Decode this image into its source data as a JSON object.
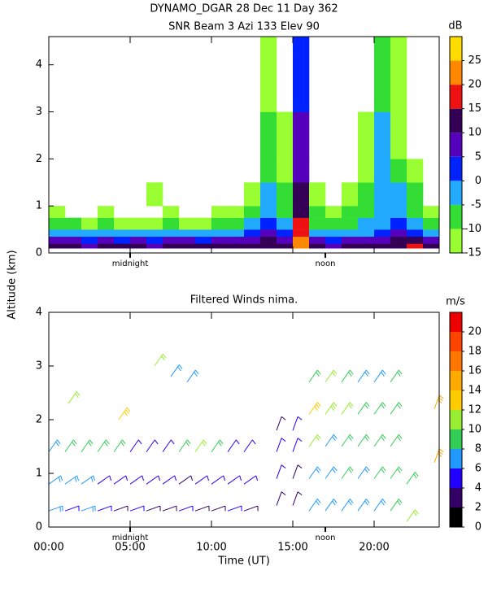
{
  "chart_data": [
    {
      "type": "heatmap",
      "title": "DYNAMO_DGAR  28 Dec 11 Day 362",
      "subtitle": "SNR Beam 3 Azi 133 Elev 90",
      "ylabel": "Altitude (km)",
      "xlim": [
        0,
        24
      ],
      "ylim": [
        0,
        4.6
      ],
      "xticks": [
        0,
        5,
        10,
        15,
        20
      ],
      "yticks": [
        0,
        1,
        2,
        3,
        4
      ],
      "x_edges": [
        0,
        1,
        2,
        3,
        4,
        5,
        6,
        7,
        8,
        9,
        10,
        11,
        12,
        13,
        14,
        15,
        16,
        17,
        18,
        19,
        20,
        21,
        22,
        23,
        24
      ],
      "y_edges": [
        0.1,
        0.2,
        0.35,
        0.5,
        0.75,
        1.0,
        1.5,
        2.0,
        3.0,
        4.6
      ],
      "z": [
        [
          10,
          10,
          8,
          12,
          10,
          10,
          8,
          10,
          10,
          10,
          10,
          10,
          12,
          12,
          10,
          22,
          10,
          8,
          10,
          10,
          12,
          14,
          18,
          10
        ],
        [
          5,
          5,
          3,
          5,
          4,
          5,
          3,
          5,
          5,
          4,
          5,
          5,
          8,
          10,
          8,
          20,
          5,
          3,
          5,
          6,
          8,
          10,
          12,
          5
        ],
        [
          -3,
          -3,
          -5,
          -2,
          -4,
          -3,
          -5,
          -3,
          -3,
          -4,
          -3,
          -3,
          2,
          5,
          2,
          18,
          -2,
          -4,
          -3,
          -2,
          2,
          5,
          2,
          -3
        ],
        [
          -10,
          -10,
          -12,
          -10,
          -12,
          -12,
          -12,
          -10,
          -12,
          -12,
          -10,
          -10,
          -5,
          0,
          -5,
          15,
          -8,
          -10,
          -8,
          -5,
          -3,
          0,
          -5,
          -10
        ],
        [
          -13,
          null,
          null,
          -14,
          null,
          null,
          null,
          -13,
          null,
          null,
          -13,
          -12,
          -8,
          -3,
          -8,
          12,
          -10,
          -12,
          -10,
          -8,
          -5,
          -3,
          -8,
          -13
        ],
        [
          null,
          null,
          null,
          null,
          null,
          null,
          -14,
          null,
          null,
          null,
          null,
          null,
          -12,
          -5,
          -10,
          10,
          -12,
          null,
          -12,
          -10,
          -5,
          -5,
          -10,
          null
        ],
        [
          null,
          null,
          null,
          null,
          null,
          null,
          null,
          null,
          null,
          null,
          null,
          null,
          null,
          -8,
          -12,
          8,
          null,
          null,
          null,
          -12,
          -5,
          -10,
          -12,
          null
        ],
        [
          null,
          null,
          null,
          null,
          null,
          null,
          null,
          null,
          null,
          null,
          null,
          null,
          null,
          -10,
          -13,
          5,
          null,
          null,
          null,
          -13,
          -5,
          -12,
          null,
          null
        ],
        [
          null,
          null,
          null,
          null,
          null,
          null,
          null,
          null,
          null,
          null,
          null,
          null,
          null,
          -12,
          null,
          3,
          null,
          null,
          null,
          null,
          -8,
          -14,
          null,
          null
        ]
      ],
      "colorbar": {
        "label": "dB",
        "levels": [
          -15,
          -10,
          -5,
          0,
          5,
          10,
          15,
          20,
          25,
          30
        ],
        "colors": [
          "#99ff33",
          "#33dd33",
          "#22aaff",
          "#0022ff",
          "#5500bb",
          "#330055",
          "#ee1111",
          "#ff8800",
          "#ffdd00"
        ],
        "ticks": [
          -15,
          -10,
          -5,
          0,
          5,
          10,
          15,
          20,
          25
        ]
      },
      "annotations": [
        {
          "text": "midnight",
          "x": 5
        },
        {
          "text": "noon",
          "x": 17
        }
      ]
    },
    {
      "type": "barbs",
      "title": "Filtered Winds nima.",
      "xlabel": "Time (UT)",
      "xlim": [
        0,
        24
      ],
      "ylim": [
        0,
        4
      ],
      "xticks": [
        {
          "value": 0,
          "label": "00:00"
        },
        {
          "value": 5,
          "label": "05:00"
        },
        {
          "value": 10,
          "label": "10:00"
        },
        {
          "value": 15,
          "label": "15:00"
        },
        {
          "value": 20,
          "label": "20:00"
        }
      ],
      "yticks": [
        0,
        1,
        2,
        3,
        4
      ],
      "colorbar": {
        "label": "m/s",
        "levels": [
          0,
          2,
          4,
          6,
          8,
          10,
          12,
          14,
          16,
          18,
          20,
          22
        ],
        "colors": [
          "#000000",
          "#330066",
          "#2200ff",
          "#2299ff",
          "#33cc55",
          "#99ee33",
          "#ffcc00",
          "#ffaa00",
          "#ff7700",
          "#ff4400",
          "#ee0000"
        ],
        "ticks": [
          0,
          2,
          4,
          6,
          8,
          10,
          12,
          14,
          16,
          18,
          20
        ]
      },
      "annotations": [
        {
          "text": "midnight",
          "x": 5
        },
        {
          "text": "noon",
          "x": 17
        }
      ],
      "barbs": [
        {
          "x": 0,
          "y": 0.3,
          "speed": 6,
          "direction": 70
        },
        {
          "x": 1,
          "y": 0.3,
          "speed": 5,
          "direction": 70
        },
        {
          "x": 2,
          "y": 0.3,
          "speed": 6,
          "direction": 70
        },
        {
          "x": 3,
          "y": 0.3,
          "speed": 4,
          "direction": 70
        },
        {
          "x": 4,
          "y": 0.3,
          "speed": 3,
          "direction": 70
        },
        {
          "x": 5,
          "y": 0.3,
          "speed": 4,
          "direction": 70
        },
        {
          "x": 6,
          "y": 0.3,
          "speed": 3,
          "direction": 70
        },
        {
          "x": 7,
          "y": 0.3,
          "speed": 3,
          "direction": 70
        },
        {
          "x": 8,
          "y": 0.3,
          "speed": 4,
          "direction": 70
        },
        {
          "x": 9,
          "y": 0.3,
          "speed": 3,
          "direction": 70
        },
        {
          "x": 10,
          "y": 0.3,
          "speed": 3,
          "direction": 70
        },
        {
          "x": 11,
          "y": 0.3,
          "speed": 4,
          "direction": 70
        },
        {
          "x": 12,
          "y": 0.3,
          "speed": 3,
          "direction": 70
        },
        {
          "x": 0,
          "y": 0.8,
          "speed": 7,
          "direction": 55
        },
        {
          "x": 1,
          "y": 0.8,
          "speed": 6,
          "direction": 55
        },
        {
          "x": 2,
          "y": 0.8,
          "speed": 6,
          "direction": 55
        },
        {
          "x": 3,
          "y": 0.8,
          "speed": 5,
          "direction": 55
        },
        {
          "x": 4,
          "y": 0.8,
          "speed": 4,
          "direction": 55
        },
        {
          "x": 5,
          "y": 0.8,
          "speed": 4,
          "direction": 55
        },
        {
          "x": 6,
          "y": 0.8,
          "speed": 5,
          "direction": 55
        },
        {
          "x": 7,
          "y": 0.8,
          "speed": 4,
          "direction": 55
        },
        {
          "x": 8,
          "y": 0.8,
          "speed": 3,
          "direction": 55
        },
        {
          "x": 9,
          "y": 0.8,
          "speed": 4,
          "direction": 55
        },
        {
          "x": 10,
          "y": 0.8,
          "speed": 5,
          "direction": 55
        },
        {
          "x": 11,
          "y": 0.8,
          "speed": 4,
          "direction": 55
        },
        {
          "x": 12,
          "y": 0.8,
          "speed": 4,
          "direction": 55
        },
        {
          "x": 0,
          "y": 1.4,
          "speed": 7,
          "direction": 35
        },
        {
          "x": 1,
          "y": 1.4,
          "speed": 8,
          "direction": 35
        },
        {
          "x": 2,
          "y": 1.4,
          "speed": 9,
          "direction": 35
        },
        {
          "x": 3,
          "y": 1.4,
          "speed": 9,
          "direction": 35
        },
        {
          "x": 4,
          "y": 1.4,
          "speed": 9,
          "direction": 35
        },
        {
          "x": 5,
          "y": 1.4,
          "speed": 5,
          "direction": 35
        },
        {
          "x": 6,
          "y": 1.4,
          "speed": 4,
          "direction": 35
        },
        {
          "x": 7,
          "y": 1.4,
          "speed": 5,
          "direction": 35
        },
        {
          "x": 8,
          "y": 1.4,
          "speed": 9,
          "direction": 35
        },
        {
          "x": 9,
          "y": 1.4,
          "speed": 10,
          "direction": 35
        },
        {
          "x": 10,
          "y": 1.4,
          "speed": 9,
          "direction": 35
        },
        {
          "x": 11,
          "y": 1.4,
          "speed": 5,
          "direction": 35
        },
        {
          "x": 12,
          "y": 1.4,
          "speed": 5,
          "direction": 35
        },
        {
          "x": 14,
          "y": 0.4,
          "speed": 3,
          "direction": 20
        },
        {
          "x": 14,
          "y": 0.9,
          "speed": 4,
          "direction": 20
        },
        {
          "x": 14,
          "y": 1.4,
          "speed": 4,
          "direction": 20
        },
        {
          "x": 14,
          "y": 1.8,
          "speed": 3,
          "direction": 20
        },
        {
          "x": 15,
          "y": 0.4,
          "speed": 3,
          "direction": 20
        },
        {
          "x": 15,
          "y": 0.9,
          "speed": 3,
          "direction": 20
        },
        {
          "x": 15,
          "y": 1.4,
          "speed": 4,
          "direction": 20
        },
        {
          "x": 15,
          "y": 1.8,
          "speed": 5,
          "direction": 20
        },
        {
          "x": 16,
          "y": 0.3,
          "speed": 7,
          "direction": 35
        },
        {
          "x": 16,
          "y": 0.9,
          "speed": 6,
          "direction": 35
        },
        {
          "x": 16,
          "y": 1.5,
          "speed": 10,
          "direction": 35
        },
        {
          "x": 16,
          "y": 2.1,
          "speed": 13,
          "direction": 35
        },
        {
          "x": 16,
          "y": 2.7,
          "speed": 9,
          "direction": 35
        },
        {
          "x": 17,
          "y": 0.3,
          "speed": 6,
          "direction": 35
        },
        {
          "x": 17,
          "y": 0.9,
          "speed": 7,
          "direction": 35
        },
        {
          "x": 17,
          "y": 1.5,
          "speed": 7,
          "direction": 35
        },
        {
          "x": 17,
          "y": 2.1,
          "speed": 11,
          "direction": 35
        },
        {
          "x": 17,
          "y": 2.7,
          "speed": 10,
          "direction": 35
        },
        {
          "x": 18,
          "y": 0.3,
          "speed": 7,
          "direction": 35
        },
        {
          "x": 18,
          "y": 0.9,
          "speed": 8,
          "direction": 35
        },
        {
          "x": 18,
          "y": 1.5,
          "speed": 9,
          "direction": 35
        },
        {
          "x": 18,
          "y": 2.1,
          "speed": 10,
          "direction": 35
        },
        {
          "x": 18,
          "y": 2.7,
          "speed": 9,
          "direction": 35
        },
        {
          "x": 19,
          "y": 0.3,
          "speed": 6,
          "direction": 35
        },
        {
          "x": 19,
          "y": 0.9,
          "speed": 7,
          "direction": 35
        },
        {
          "x": 19,
          "y": 1.5,
          "speed": 8,
          "direction": 35
        },
        {
          "x": 19,
          "y": 2.1,
          "speed": 9,
          "direction": 35
        },
        {
          "x": 19,
          "y": 2.7,
          "speed": 7,
          "direction": 35
        },
        {
          "x": 20,
          "y": 0.3,
          "speed": 7,
          "direction": 35
        },
        {
          "x": 20,
          "y": 0.9,
          "speed": 8,
          "direction": 35
        },
        {
          "x": 20,
          "y": 1.5,
          "speed": 9,
          "direction": 35
        },
        {
          "x": 20,
          "y": 2.1,
          "speed": 9,
          "direction": 35
        },
        {
          "x": 20,
          "y": 2.7,
          "speed": 6,
          "direction": 35
        },
        {
          "x": 21,
          "y": 0.3,
          "speed": 8,
          "direction": 35
        },
        {
          "x": 21,
          "y": 0.9,
          "speed": 9,
          "direction": 35
        },
        {
          "x": 21,
          "y": 1.5,
          "speed": 8,
          "direction": 35
        },
        {
          "x": 21,
          "y": 2.1,
          "speed": 9,
          "direction": 35
        },
        {
          "x": 21,
          "y": 2.7,
          "speed": 8,
          "direction": 35
        },
        {
          "x": 1.2,
          "y": 2.3,
          "speed": 10,
          "direction": 35
        },
        {
          "x": 4.3,
          "y": 2.0,
          "speed": 13,
          "direction": 35
        },
        {
          "x": 6.5,
          "y": 3.0,
          "speed": 10,
          "direction": 35
        },
        {
          "x": 7.5,
          "y": 2.8,
          "speed": 7,
          "direction": 35
        },
        {
          "x": 8.5,
          "y": 2.7,
          "speed": 6,
          "direction": 35
        },
        {
          "x": 22,
          "y": 0.8,
          "speed": 9,
          "direction": 35
        },
        {
          "x": 22,
          "y": 0.1,
          "speed": 10,
          "direction": 35
        },
        {
          "x": 23.7,
          "y": 2.2,
          "speed": 15,
          "direction": 20
        },
        {
          "x": 23.7,
          "y": 1.2,
          "speed": 15,
          "direction": 20
        }
      ]
    }
  ]
}
